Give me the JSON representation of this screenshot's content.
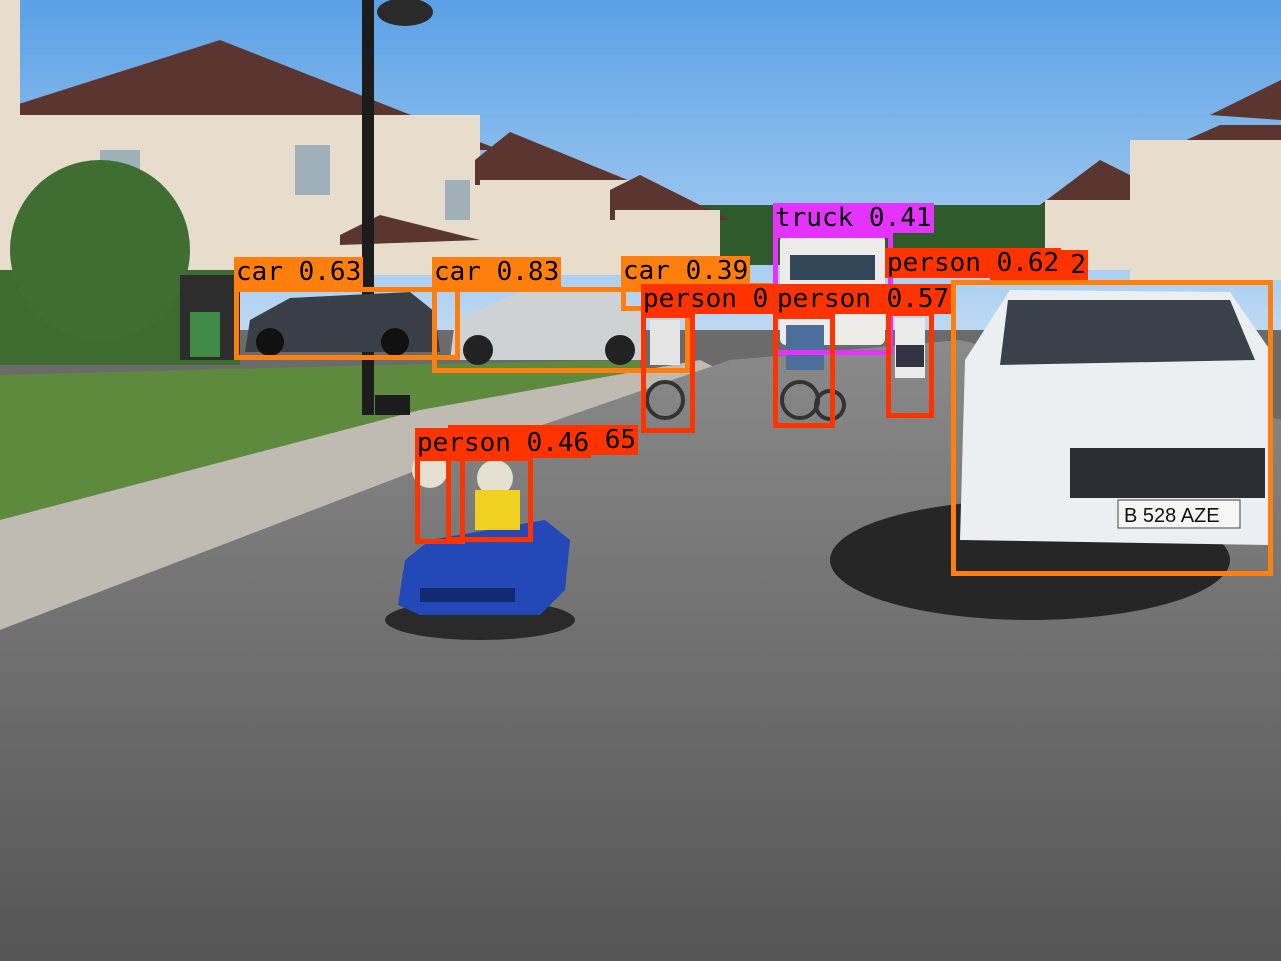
{
  "colors": {
    "car": "#ff7f0e",
    "person": "#ff3300",
    "truck": "#e533ff"
  },
  "scene": {
    "license_plate": "B 528 AZE"
  },
  "detections": [
    {
      "label": "car 0.63",
      "color": "#ff7f0e"
    },
    {
      "label": "car 0.83",
      "color": "#ff7f0e"
    },
    {
      "label": "car 0.39",
      "color": "#ff7f0e"
    },
    {
      "label": "truck 0.41",
      "color": "#e533ff"
    },
    {
      "label": "person 0.62",
      "color": "#ff3300"
    },
    {
      "label": "person 0.57",
      "color": "#ff3300"
    },
    {
      "label": "person 0",
      "color": "#ff3300"
    },
    {
      "label": "person 0.46",
      "color": "#ff3300"
    },
    {
      "label": "65",
      "color": "#ff3300"
    },
    {
      "label": "2",
      "color": "#ff3300"
    },
    {
      "label": "",
      "color": "#ff7f0e"
    },
    {
      "label": "",
      "color": "#ff3300"
    }
  ]
}
